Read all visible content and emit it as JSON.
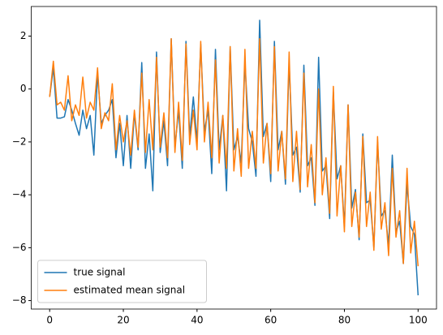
{
  "chart_data": {
    "type": "line",
    "x": [
      0,
      1,
      2,
      3,
      4,
      5,
      6,
      7,
      8,
      9,
      10,
      11,
      12,
      13,
      14,
      15,
      16,
      17,
      18,
      19,
      20,
      21,
      22,
      23,
      24,
      25,
      26,
      27,
      28,
      29,
      30,
      31,
      32,
      33,
      34,
      35,
      36,
      37,
      38,
      39,
      40,
      41,
      42,
      43,
      44,
      45,
      46,
      47,
      48,
      49,
      50,
      51,
      52,
      53,
      54,
      55,
      56,
      57,
      58,
      59,
      60,
      61,
      62,
      63,
      64,
      65,
      66,
      67,
      68,
      69,
      70,
      71,
      72,
      73,
      74,
      75,
      76,
      77,
      78,
      79,
      80,
      81,
      82,
      83,
      84,
      85,
      86,
      87,
      88,
      89,
      90,
      91,
      92,
      93,
      94,
      95,
      96,
      97,
      98,
      99,
      100
    ],
    "series": [
      {
        "name": "true signal",
        "color": "#1f77b4",
        "values": [
          -0.3,
          0.8,
          -1.1,
          -1.1,
          -1.05,
          -0.4,
          -0.8,
          -1.3,
          -1.75,
          -0.8,
          -1.5,
          -1.0,
          -2.5,
          0.6,
          -1.3,
          -1.0,
          -0.8,
          -0.4,
          -2.6,
          -1.3,
          -2.9,
          -1.0,
          -3.0,
          -0.9,
          -2.3,
          1.0,
          -3.0,
          -1.7,
          -3.85,
          1.4,
          -2.4,
          -1.2,
          -2.9,
          1.9,
          -2.2,
          -0.8,
          -3.0,
          1.8,
          -1.8,
          -0.3,
          -2.0,
          1.7,
          -1.6,
          -0.8,
          -3.2,
          1.5,
          -2.3,
          -1.0,
          -3.85,
          1.6,
          -2.3,
          -1.8,
          -2.8,
          1.0,
          -1.5,
          -2.0,
          -3.3,
          2.6,
          -1.8,
          -1.3,
          -3.5,
          1.8,
          -2.3,
          -1.6,
          -3.6,
          1.0,
          -2.5,
          -2.2,
          -3.9,
          0.9,
          -2.9,
          -2.6,
          -4.4,
          1.2,
          -3.1,
          -2.9,
          -4.9,
          -0.1,
          -3.4,
          -2.9,
          -5.2,
          -0.6,
          -4.5,
          -3.8,
          -5.7,
          -1.7,
          -4.3,
          -4.2,
          -6.0,
          -2.0,
          -4.8,
          -4.6,
          -5.9,
          -2.5,
          -5.4,
          -5.0,
          -6.6,
          -3.6,
          -5.2,
          -5.5,
          -7.8
        ]
      },
      {
        "name": "estimated mean signal",
        "color": "#ff7f0e",
        "values": [
          -0.3,
          1.05,
          -0.6,
          -0.5,
          -0.8,
          0.5,
          -1.2,
          -0.6,
          -1.0,
          0.45,
          -1.1,
          -0.5,
          -0.8,
          0.8,
          -1.5,
          -0.9,
          -1.2,
          0.2,
          -2.3,
          -1.0,
          -2.0,
          -1.2,
          -2.5,
          -0.8,
          -2.2,
          0.6,
          -2.4,
          -0.4,
          -2.3,
          1.2,
          -2.2,
          -0.9,
          -2.6,
          1.9,
          -2.4,
          -0.5,
          -2.7,
          1.7,
          -2.1,
          -0.8,
          -2.3,
          1.8,
          -2.0,
          -0.5,
          -2.6,
          1.1,
          -2.8,
          -1.0,
          -3.0,
          1.6,
          -3.1,
          -1.5,
          -3.3,
          1.5,
          -3.0,
          -1.6,
          -3.0,
          1.9,
          -2.8,
          -1.3,
          -3.2,
          1.6,
          -3.1,
          -1.6,
          -3.4,
          1.4,
          -3.5,
          -1.6,
          -3.8,
          0.6,
          -3.7,
          -2.1,
          -4.3,
          0.0,
          -4.0,
          -2.6,
          -4.7,
          0.1,
          -4.8,
          -2.9,
          -5.4,
          -0.6,
          -5.2,
          -3.9,
          -5.6,
          -1.8,
          -5.2,
          -3.9,
          -6.1,
          -1.8,
          -5.3,
          -4.3,
          -6.3,
          -3.0,
          -5.6,
          -4.6,
          -6.6,
          -3.0,
          -6.2,
          -5.0,
          -6.7
        ]
      }
    ],
    "xlim": [
      -5,
      105
    ],
    "xticks": [
      0,
      20,
      40,
      60,
      80,
      100
    ],
    "ylim": [
      -8.32,
      3.12
    ],
    "yticks": [
      {
        "value": -8,
        "label": "−8"
      },
      {
        "value": -6,
        "label": "−6"
      },
      {
        "value": -4,
        "label": "−4"
      },
      {
        "value": -2,
        "label": "−2"
      },
      0,
      2
    ],
    "legend": "lower left"
  }
}
